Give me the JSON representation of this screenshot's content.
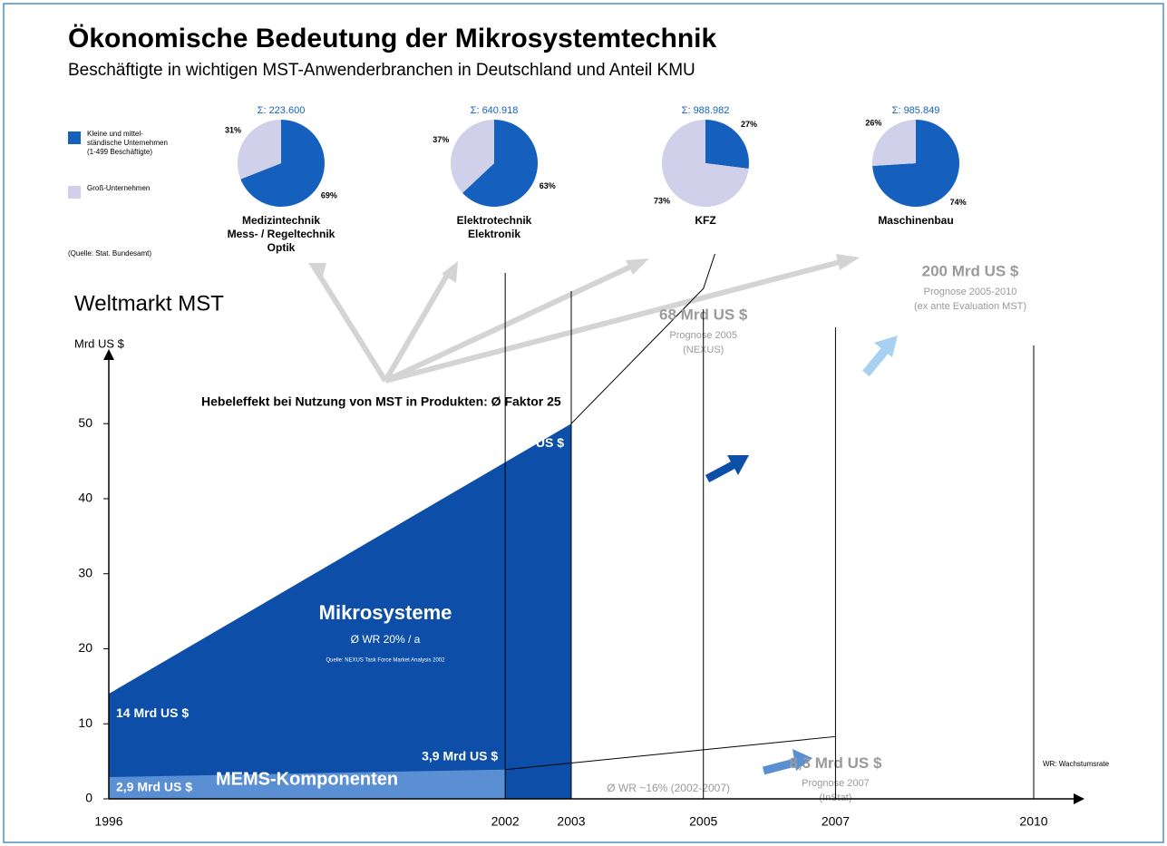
{
  "title": "Ökonomische Bedeutung der Mikrosystemtechnik",
  "subtitle": "Beschäftigte in wichtigen MST-Anwenderbranchen in Deutschland und Anteil KMU",
  "legend": {
    "items": [
      {
        "name": [
          "Kleine und mittel-",
          "ständische Unternehmen",
          "(1-499 Beschäftigte)"
        ],
        "color": "#1560bd"
      },
      {
        "name": [
          "Groß-Unternehmen"
        ],
        "color": "#d0d0ea"
      }
    ]
  },
  "source": "(Quelle: Stat. Bundesamt)",
  "leverage": {
    "text": "Hebeleffekt bei Nutzung von MST in Produkten: Ø Faktor 25"
  },
  "chart_data": [
    {
      "type": "pie",
      "title": [
        "Medizintechnik",
        "Mess- / Regeltechnik",
        "Optik"
      ],
      "total_label": "Σ: 223.600",
      "values": [
        69,
        31
      ],
      "value_labels": [
        "69%",
        "31%"
      ]
    },
    {
      "type": "pie",
      "title": [
        "Elektrotechnik",
        "Elektronik"
      ],
      "total_label": "Σ: 640.918",
      "values": [
        63,
        37
      ],
      "value_labels": [
        "63%",
        "37%"
      ]
    },
    {
      "type": "pie",
      "title": [
        "KFZ"
      ],
      "total_label": "Σ: 988.982",
      "values": [
        27,
        73
      ],
      "value_labels": [
        "27%",
        "73%"
      ]
    },
    {
      "type": "pie",
      "title": [
        "Maschinenbau"
      ],
      "total_label": "Σ: 985.849",
      "values": [
        74,
        26
      ],
      "value_labels": [
        "74%",
        "26%"
      ]
    },
    {
      "type": "area",
      "title": "Weltmarkt MST",
      "ylabel": "Mrd US $",
      "xlim": [
        1996,
        2010
      ],
      "xticks": [
        1996,
        2002,
        2003,
        2005,
        2007,
        2010
      ],
      "ylim": [
        0,
        58
      ],
      "yticks": [
        0,
        10,
        20,
        30,
        40,
        50
      ],
      "series": [
        {
          "name": "Mikrosysteme",
          "color": "#0d4fa8",
          "x": [
            1996,
            2003
          ],
          "values": [
            14,
            50
          ],
          "value_labels": [
            "14 Mrd US $",
            "50 Mrd US $"
          ],
          "notes": [
            "Ø WR 20% / a",
            "Quelle: NEXUS Task Force Market Analysis 2002"
          ]
        },
        {
          "name": "MEMS-Komponenten",
          "color": "#5b8fd4",
          "x": [
            1996,
            2002
          ],
          "values": [
            2.9,
            3.9
          ],
          "value_labels": [
            "2,9 Mrd US $",
            "3,9 Mrd US $"
          ],
          "notes": [
            "Ø WR ~16% (2002-2007)"
          ]
        }
      ],
      "forecasts": [
        {
          "from": 0,
          "x": [
            2005,
            2010
          ],
          "values": [
            68,
            200
          ],
          "value_labels": [
            "68 Mrd US $",
            "200 Mrd US $"
          ],
          "notes": [
            [
              "Prognose 2005",
              "(NEXUS)"
            ],
            [
              "Prognose 2005-2010",
              "(ex ante Evaluation MST)"
            ]
          ]
        },
        {
          "from": 1,
          "x": [
            2007
          ],
          "values": [
            8.3
          ],
          "value_labels": [
            "8,3 Mrd US $"
          ],
          "notes": [
            [
              "Prognose 2007",
              "(InStat)"
            ]
          ]
        }
      ],
      "footnote": "WR: Wachstumsrate"
    }
  ]
}
